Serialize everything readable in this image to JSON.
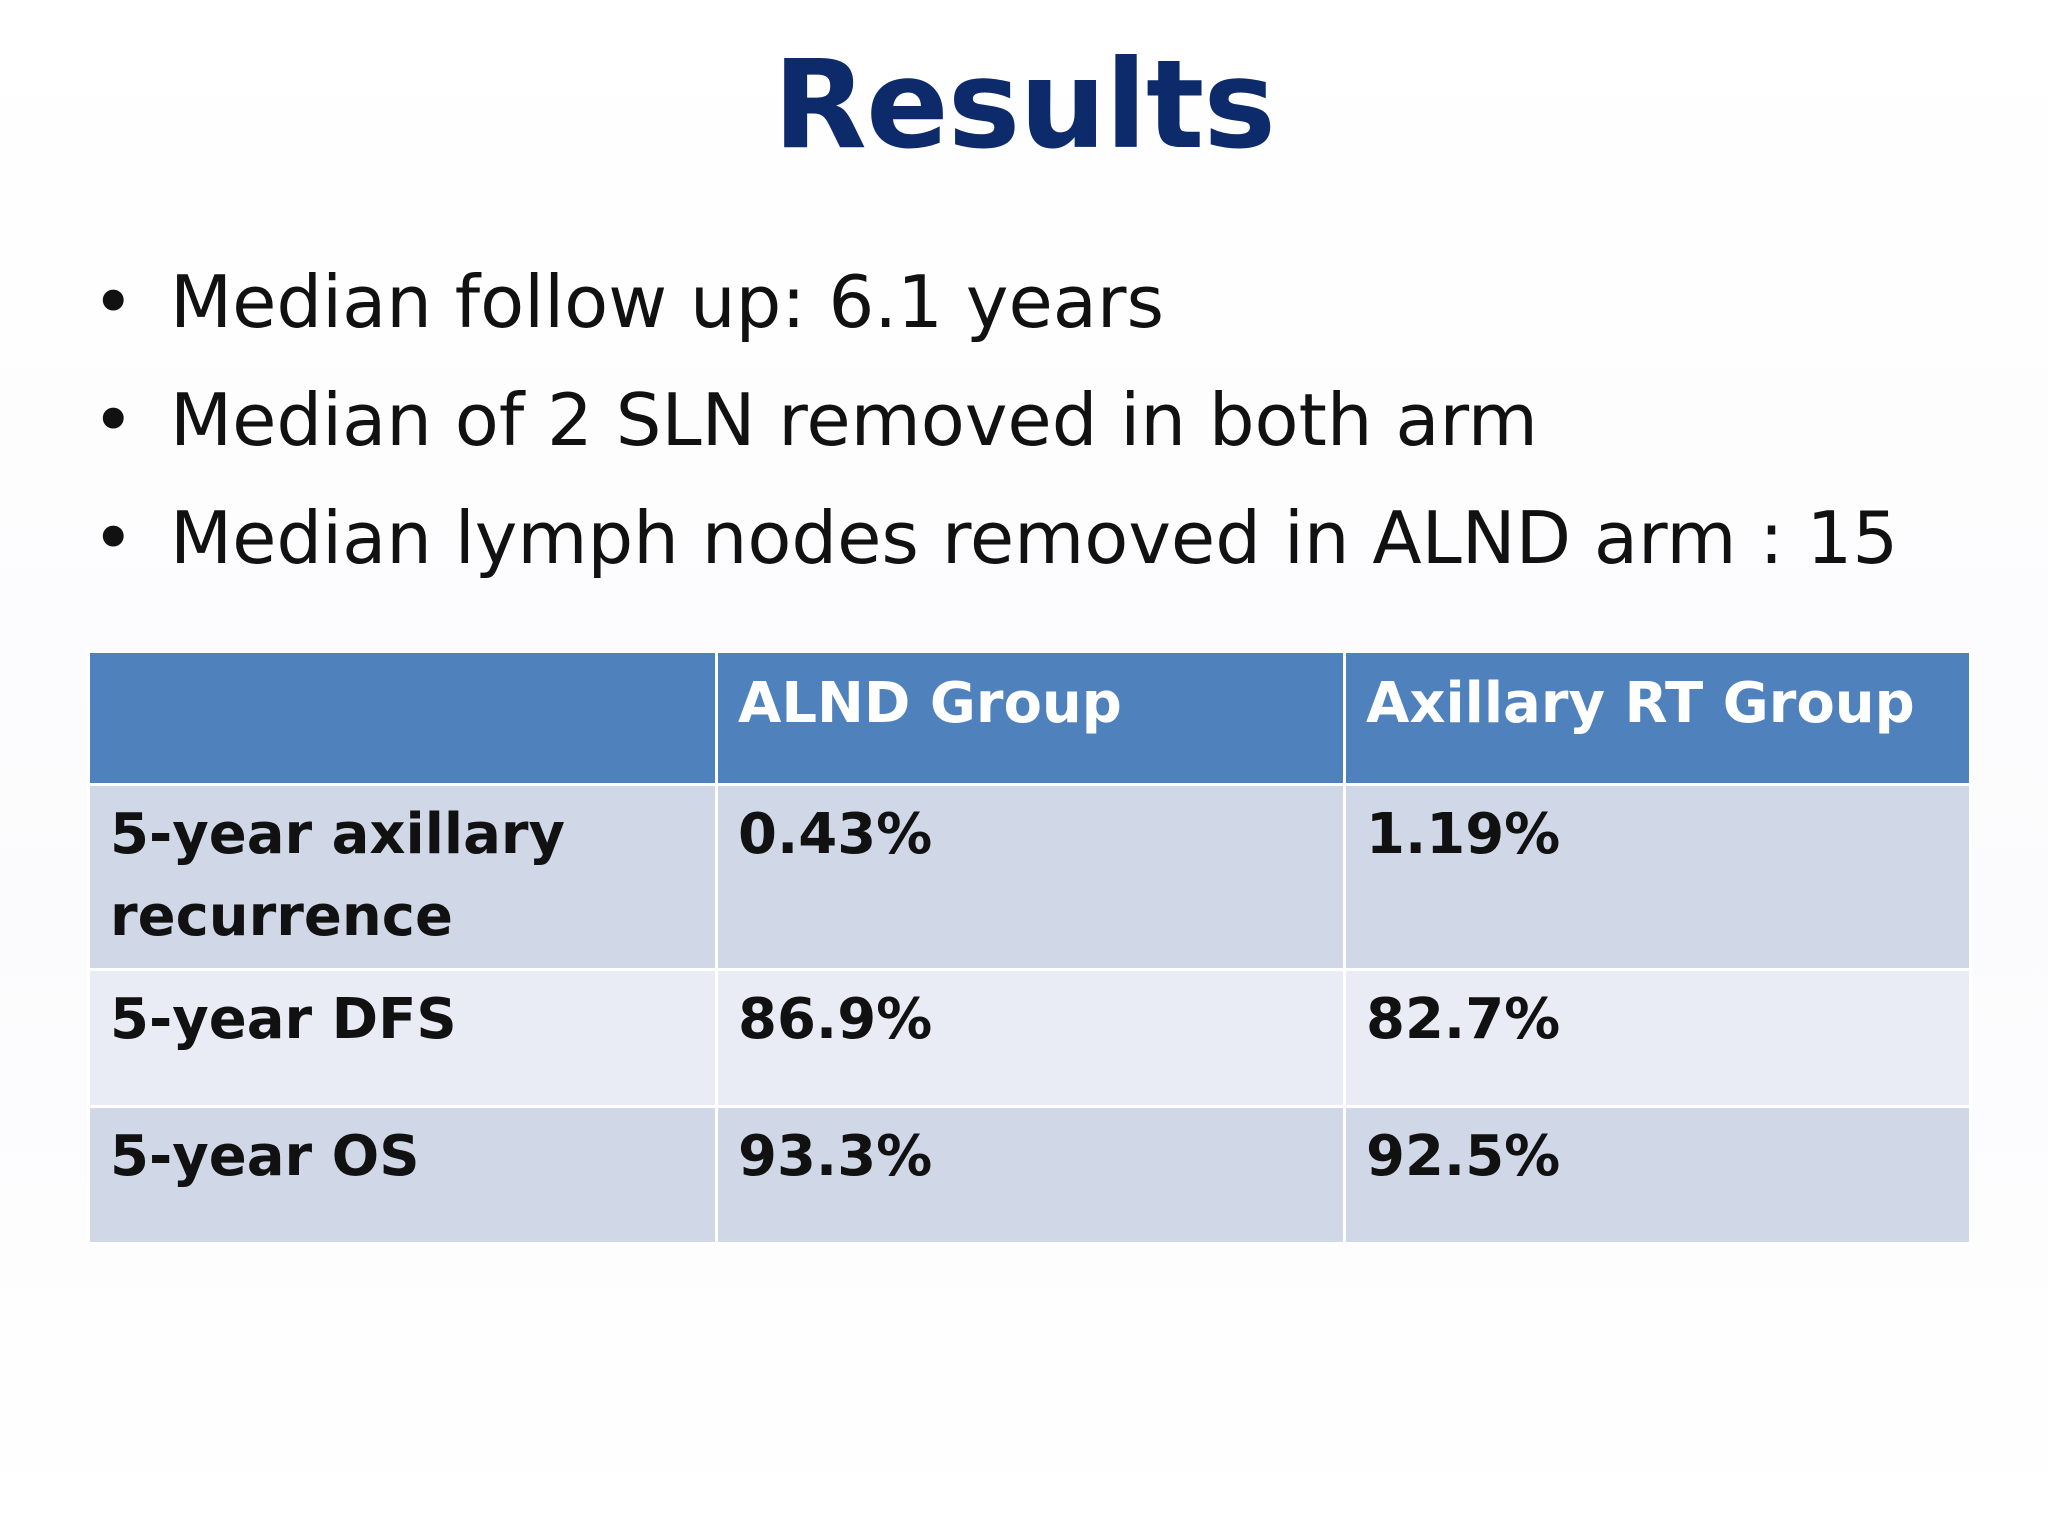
{
  "slide": {
    "title": "Results",
    "bullets": [
      "Median follow up: 6.1 years",
      "Median of 2 SLN removed in both arm",
      "Median lymph nodes removed in ALND arm : 15"
    ],
    "bullet_symbol": "•"
  },
  "table": {
    "headers": [
      "",
      "ALND Group",
      "Axillary RT Group"
    ],
    "rows": [
      [
        "5-year axillary recurrence",
        "0.43%",
        "1.19%"
      ],
      [
        "5-year DFS",
        "86.9%",
        "82.7%"
      ],
      [
        "5-year OS",
        "93.3%",
        "92.5%"
      ]
    ]
  },
  "colors": {
    "title": "#0d2b6b",
    "header_bg": "#4f81bd",
    "row_dark": "#d0d8e8",
    "row_light": "#e9ebf5"
  }
}
